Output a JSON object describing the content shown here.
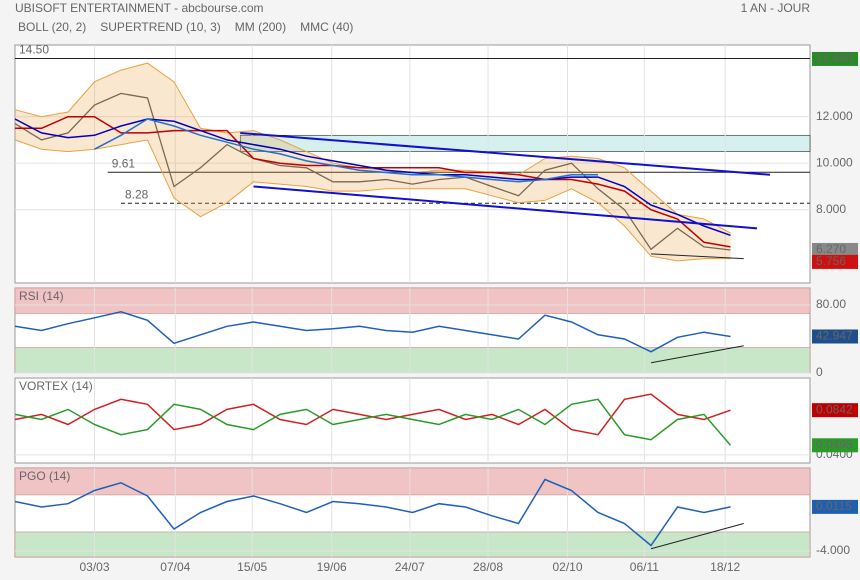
{
  "chart_data": [
    {
      "type": "line",
      "title": "UBISOFT ENTERTAINMENT - abcbourse.com",
      "subtitle": "1 AN - JOUR",
      "x": [
        0,
        2,
        4,
        6,
        8,
        10,
        12,
        14,
        16,
        18,
        20,
        22,
        24,
        26,
        28,
        30,
        32,
        34,
        36,
        38,
        40,
        42,
        44,
        46,
        48,
        50,
        52,
        54
      ],
      "xlim": [
        0,
        60
      ],
      "xticks": [
        {
          "value": 6.0,
          "label": "03/03"
        },
        {
          "value": 12.1,
          "label": "07/04"
        },
        {
          "value": 17.9,
          "label": "15/05"
        },
        {
          "value": 23.9,
          "label": "19/06"
        },
        {
          "value": 29.8,
          "label": "24/07"
        },
        {
          "value": 35.7,
          "label": "28/08"
        },
        {
          "value": 41.7,
          "label": "02/10"
        },
        {
          "value": 47.5,
          "label": "06/11"
        },
        {
          "value": 53.6,
          "label": "18/12"
        }
      ],
      "ylim": [
        4.85,
        15.08
      ],
      "yticks": [
        {
          "value": 8,
          "label": "8.000"
        },
        {
          "value": 10,
          "label": "10.000"
        },
        {
          "value": 12,
          "label": "12.000"
        }
      ],
      "grid": true,
      "series": [
        {
          "color": "#555555",
          "values": [
            11.7,
            11.0,
            11.3,
            12.5,
            13.0,
            12.8,
            9.0,
            9.8,
            10.8,
            10.2,
            9.9,
            9.8,
            9.2,
            9.2,
            9.3,
            9.1,
            9.3,
            9.4,
            9.0,
            8.6,
            9.7,
            10.0,
            8.9,
            8.0,
            6.3,
            7.2,
            6.4,
            6.27
          ]
        },
        {
          "name": "BOLL (20, 2)",
          "color": "#e8a040",
          "upper": [
            12.3,
            12.0,
            12.2,
            13.5,
            14.0,
            14.3,
            13.5,
            11.5,
            11.3,
            11.4,
            11.0,
            10.5,
            10.0,
            9.8,
            9.7,
            9.6,
            9.7,
            9.7,
            9.6,
            9.5,
            10.2,
            10.3,
            10.2,
            9.8,
            8.8,
            7.8,
            7.6,
            7.0
          ],
          "lower": [
            11.0,
            10.6,
            10.5,
            10.6,
            10.8,
            11.0,
            8.5,
            7.7,
            8.3,
            9.2,
            9.1,
            9.0,
            8.8,
            8.8,
            8.9,
            8.9,
            8.9,
            8.9,
            8.6,
            8.3,
            8.4,
            8.9,
            8.3,
            7.3,
            6.0,
            5.8,
            5.9,
            5.9
          ]
        },
        {
          "name": "SUPERTREND (10, 3)",
          "color": "#c00000",
          "values": [
            11.5,
            11.5,
            12.0,
            12.0,
            11.3,
            11.3,
            11.4,
            11.4,
            11.4,
            10.2,
            10.0,
            9.9,
            9.9,
            9.8,
            9.8,
            9.8,
            9.8,
            9.6,
            9.6,
            9.5,
            9.3,
            9.3,
            9.1,
            8.8,
            8.0,
            7.6,
            6.6,
            6.4
          ]
        },
        {
          "name": "MM (200)",
          "color": "#0000c0",
          "values": [
            11.9,
            11.3,
            11.1,
            11.2,
            11.6,
            11.9,
            11.8,
            11.4,
            11.0,
            10.8,
            10.6,
            10.3,
            10.1,
            9.9,
            9.7,
            9.6,
            9.5,
            9.5,
            9.4,
            9.3,
            9.3,
            9.4,
            9.4,
            9.0,
            8.2,
            7.8,
            7.3,
            6.9
          ]
        },
        {
          "name": "MMC (40)",
          "color": "#2070d0",
          "values": [
            null,
            null,
            null,
            10.6,
            11.2,
            11.9,
            11.6,
            11.2,
            10.9,
            10.6,
            10.4,
            10.1,
            9.9,
            9.7,
            9.6,
            9.5,
            9.5,
            9.4,
            9.3,
            9.2,
            9.3,
            9.5,
            9.5,
            null,
            null,
            null,
            null,
            null
          ]
        }
      ],
      "zones": [
        {
          "x": [
            17,
            60
          ],
          "y": [
            10.5,
            11.2
          ],
          "color": "#d6f0f0"
        }
      ],
      "levels": [
        {
          "value": 14.5,
          "label": "14.50",
          "x0": 0
        },
        {
          "value": 9.61,
          "label": "9.61",
          "x0": 7
        },
        {
          "value": 8.28,
          "label": "8.28",
          "x0": 8,
          "dashed": true
        }
      ],
      "trendlines": [
        {
          "x": [
            17,
            57
          ],
          "y": [
            11.3,
            9.5
          ],
          "color": "#1010d0"
        },
        {
          "x": [
            18,
            56
          ],
          "y": [
            9.0,
            7.2
          ],
          "color": "#1010d0"
        },
        {
          "x": [
            48,
            55
          ],
          "y": [
            6.1,
            5.9
          ],
          "color": "#222222"
        }
      ],
      "badges": [
        {
          "value": 14.48,
          "label": "14.480",
          "color": "#2a8a2a"
        },
        {
          "value": 6.27,
          "label": "6.270",
          "color": "#888888"
        },
        {
          "value": 5.756,
          "color": "#d01010"
        }
      ]
    },
    {
      "type": "line",
      "title": "RSI (14)",
      "ylim": [
        0,
        100
      ],
      "yticks": [
        0,
        {
          "value": 80,
          "label": "80.00"
        }
      ],
      "grid": true,
      "series": [
        {
          "color": "#1f5fb8",
          "values": [
            55,
            50,
            58,
            65,
            72,
            62,
            35,
            45,
            55,
            60,
            55,
            50,
            52,
            55,
            50,
            48,
            55,
            50,
            45,
            40,
            68,
            60,
            45,
            40,
            25,
            42,
            48,
            42.947
          ]
        }
      ],
      "zones": [
        {
          "y": [
            70,
            100
          ],
          "color": "#f0c4c4"
        },
        {
          "y": [
            0,
            30
          ],
          "color": "#c8e6c8"
        }
      ],
      "trendlines": [
        {
          "x": [
            48,
            55
          ],
          "y": [
            12,
            32
          ],
          "color": "#222222"
        }
      ],
      "badges": [
        {
          "value": 42.947,
          "color": "#1f4e8c"
        }
      ]
    },
    {
      "type": "line",
      "title": "VORTEX (14)",
      "ylim": [
        0.032,
        0.116
      ],
      "yticks": [
        {
          "value": 0.04,
          "label": "0.0400"
        }
      ],
      "grid": true,
      "series": [
        {
          "color": "#d02020",
          "values": [
            0.075,
            0.08,
            0.07,
            0.085,
            0.095,
            0.09,
            0.065,
            0.07,
            0.085,
            0.09,
            0.075,
            0.07,
            0.085,
            0.08,
            0.075,
            0.08,
            0.085,
            0.075,
            0.08,
            0.07,
            0.085,
            0.065,
            0.06,
            0.095,
            0.1,
            0.08,
            0.075,
            0.0842
          ]
        },
        {
          "color": "#2a9a2a",
          "values": [
            0.08,
            0.075,
            0.085,
            0.07,
            0.06,
            0.065,
            0.09,
            0.085,
            0.07,
            0.065,
            0.08,
            0.085,
            0.07,
            0.075,
            0.08,
            0.075,
            0.07,
            0.08,
            0.075,
            0.085,
            0.07,
            0.09,
            0.095,
            0.06,
            0.055,
            0.075,
            0.08,
            0.0495
          ]
        }
      ],
      "badges": [
        {
          "value": 0.0842,
          "color": "#c00000"
        },
        {
          "value": 0.0495,
          "color": "#2a9a2a"
        }
      ]
    },
    {
      "type": "line",
      "title": "PGO (14)",
      "ylim": [
        -4.55,
        3.55
      ],
      "yticks": [
        {
          "value": -4,
          "label": "-4.000"
        }
      ],
      "grid": true,
      "series": [
        {
          "color": "#1f5fb8",
          "values": [
            0.5,
            0,
            0.3,
            1.5,
            2.2,
            1.0,
            -2.0,
            -0.5,
            0.5,
            1.0,
            0.3,
            -0.5,
            0.5,
            0.3,
            0,
            -0.5,
            0.3,
            0,
            -0.8,
            -1.5,
            2.5,
            1.5,
            -0.5,
            -1.5,
            -3.5,
            0,
            -0.5,
            0.0115
          ]
        }
      ],
      "zones": [
        {
          "y": [
            1.1,
            3.55
          ],
          "color": "#f0c4c4"
        },
        {
          "y": [
            -4.55,
            -2.27
          ],
          "color": "#c8e6c8"
        }
      ],
      "trendlines": [
        {
          "x": [
            48,
            55
          ],
          "y": [
            -3.8,
            -1.5
          ],
          "color": "#222222"
        }
      ],
      "badges": [
        {
          "value": 0.0115,
          "color": "#1f5fb0"
        }
      ]
    }
  ]
}
